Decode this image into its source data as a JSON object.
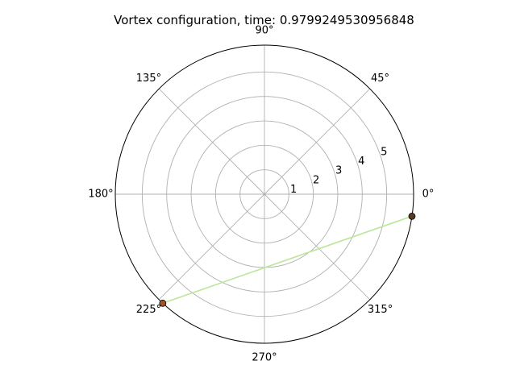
{
  "chart_data": {
    "type": "polar-scatter",
    "title": "Vortex configuration, time: 0.9799249530956848",
    "theta_tick_labels": [
      "0°",
      "45°",
      "90°",
      "135°",
      "180°",
      "225°",
      "270°",
      "315°"
    ],
    "theta_ticks_deg": [
      0,
      45,
      90,
      135,
      180,
      225,
      270,
      315
    ],
    "r_tick_labels": [
      "1",
      "2",
      "3",
      "4",
      "5"
    ],
    "r_ticks": [
      1,
      2,
      3,
      4,
      5
    ],
    "rlim": [
      0,
      6.1
    ],
    "grid": true,
    "points": [
      {
        "theta_deg": 351.5,
        "r": 6.1,
        "color": "#5a3a22"
      },
      {
        "theta_deg": 227.0,
        "r": 6.1,
        "color": "#a4522a"
      }
    ],
    "segments": [
      {
        "from": 0,
        "to": 1,
        "color": "#bde59a"
      }
    ]
  }
}
